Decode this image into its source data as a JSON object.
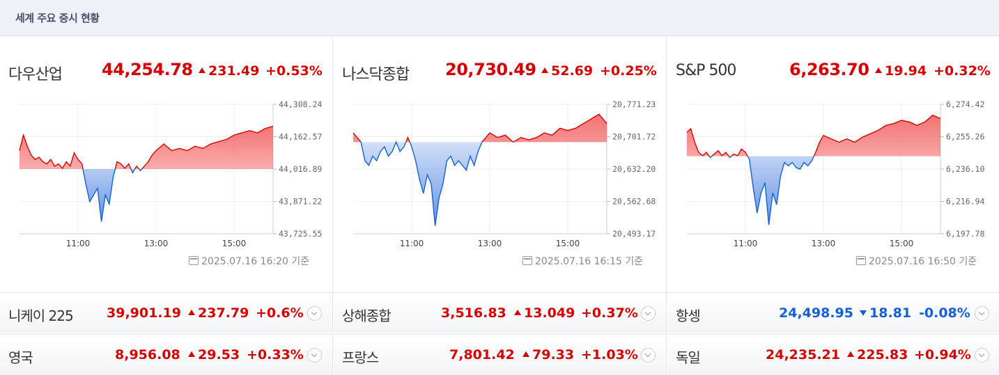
{
  "header": {
    "title": "세계 주요 증시 현황"
  },
  "panels": [
    {
      "name": "다우산업",
      "value": "44,254.78",
      "change": "231.49",
      "percent": "+0.53%",
      "direction": "up",
      "timestamp": "2025.07.16 16:20 기준"
    },
    {
      "name": "나스닥종합",
      "value": "20,730.49",
      "change": "52.69",
      "percent": "+0.25%",
      "direction": "up",
      "timestamp": "2025.07.16 16:15 기준"
    },
    {
      "name": "S&P 500",
      "value": "6,263.70",
      "change": "19.94",
      "percent": "+0.32%",
      "direction": "up",
      "timestamp": "2025.07.16 16:50 기준"
    }
  ],
  "rows": [
    [
      {
        "name": "니케이 225",
        "value": "39,901.19",
        "change": "237.79",
        "percent": "+0.6%",
        "direction": "up"
      },
      {
        "name": "상해종합",
        "value": "3,516.83",
        "change": "13.049",
        "percent": "+0.37%",
        "direction": "up"
      },
      {
        "name": "항셍",
        "value": "24,498.95",
        "change": "18.81",
        "percent": "-0.08%",
        "direction": "down"
      }
    ],
    [
      {
        "name": "영국",
        "value": "8,956.08",
        "change": "29.53",
        "percent": "+0.33%",
        "direction": "up"
      },
      {
        "name": "프랑스",
        "value": "7,801.42",
        "change": "79.33",
        "percent": "+1.03%",
        "direction": "up"
      },
      {
        "name": "독일",
        "value": "24,235.21",
        "change": "225.83",
        "percent": "+0.94%",
        "direction": "up"
      }
    ]
  ],
  "colors": {
    "up": "#d40000",
    "down": "#1560d4",
    "up_fill": "#f25a5a",
    "down_fill": "#4a7fe0"
  },
  "chart_data": [
    {
      "type": "area",
      "title": "다우산업",
      "x_ticks": [
        "11:00",
        "13:00",
        "15:00"
      ],
      "y_ticks": [
        "44,308.24",
        "44,162.57",
        "44,016.89",
        "43,871.22",
        "43,725.55"
      ],
      "ylim": [
        43725.55,
        44308.24
      ],
      "baseline": 44016.89,
      "x_range": [
        9.5,
        16.0
      ],
      "x": [
        9.5,
        9.6,
        9.7,
        9.8,
        9.9,
        10.0,
        10.1,
        10.2,
        10.3,
        10.4,
        10.5,
        10.6,
        10.7,
        10.8,
        10.9,
        11.0,
        11.1,
        11.2,
        11.3,
        11.4,
        11.5,
        11.6,
        11.7,
        11.8,
        11.9,
        12.0,
        12.1,
        12.2,
        12.3,
        12.4,
        12.5,
        12.6,
        12.7,
        12.8,
        12.9,
        13.0,
        13.2,
        13.4,
        13.6,
        13.8,
        14.0,
        14.2,
        14.4,
        14.6,
        14.8,
        15.0,
        15.2,
        15.4,
        15.6,
        15.8,
        16.0
      ],
      "y": [
        44100,
        44170,
        44120,
        44080,
        44060,
        44070,
        44050,
        44040,
        44060,
        44030,
        44040,
        44020,
        44050,
        44030,
        44090,
        44060,
        44040,
        43950,
        43870,
        43900,
        43930,
        43780,
        43900,
        43860,
        43980,
        44050,
        44040,
        44020,
        44040,
        44000,
        44030,
        44010,
        44030,
        44050,
        44080,
        44100,
        44130,
        44100,
        44110,
        44100,
        44120,
        44110,
        44130,
        44140,
        44150,
        44170,
        44180,
        44190,
        44180,
        44200,
        44210
      ],
      "grid": true
    },
    {
      "type": "area",
      "title": "나스닥종합",
      "x_ticks": [
        "11:00",
        "13:00",
        "15:00"
      ],
      "y_ticks": [
        "20,771.23",
        "20,701.72",
        "20,632.20",
        "20,562.68",
        "20,493.17"
      ],
      "ylim": [
        20493.17,
        20771.23
      ],
      "baseline": 20690,
      "x_range": [
        9.5,
        16.0
      ],
      "x": [
        9.5,
        9.6,
        9.7,
        9.8,
        9.9,
        10.0,
        10.1,
        10.2,
        10.3,
        10.4,
        10.5,
        10.6,
        10.7,
        10.8,
        10.9,
        11.0,
        11.1,
        11.2,
        11.3,
        11.4,
        11.5,
        11.6,
        11.7,
        11.8,
        11.9,
        12.0,
        12.1,
        12.2,
        12.3,
        12.4,
        12.5,
        12.6,
        12.7,
        12.8,
        12.9,
        13.0,
        13.2,
        13.4,
        13.6,
        13.8,
        14.0,
        14.2,
        14.4,
        14.6,
        14.8,
        15.0,
        15.2,
        15.4,
        15.6,
        15.8,
        16.0
      ],
      "y": [
        20710,
        20700,
        20690,
        20650,
        20640,
        20660,
        20650,
        20670,
        20680,
        20660,
        20670,
        20690,
        20670,
        20680,
        20700,
        20680,
        20650,
        20610,
        20580,
        20620,
        20600,
        20510,
        20570,
        20600,
        20650,
        20660,
        20640,
        20650,
        20640,
        20630,
        20660,
        20640,
        20670,
        20690,
        20700,
        20710,
        20700,
        20705,
        20690,
        20700,
        20695,
        20700,
        20710,
        20705,
        20720,
        20715,
        20720,
        20730,
        20740,
        20750,
        20730
      ],
      "grid": true
    },
    {
      "type": "area",
      "title": "S&P 500",
      "x_ticks": [
        "11:00",
        "13:00",
        "15:00"
      ],
      "y_ticks": [
        "6,274.42",
        "6,255.26",
        "6,236.10",
        "6,216.94",
        "6,197.78"
      ],
      "ylim": [
        6197.78,
        6274.42
      ],
      "baseline": 6243.7,
      "x_range": [
        9.5,
        16.0
      ],
      "x": [
        9.5,
        9.6,
        9.7,
        9.8,
        9.9,
        10.0,
        10.1,
        10.2,
        10.3,
        10.4,
        10.5,
        10.6,
        10.7,
        10.8,
        10.9,
        11.0,
        11.1,
        11.2,
        11.3,
        11.4,
        11.5,
        11.6,
        11.7,
        11.8,
        11.9,
        12.0,
        12.1,
        12.2,
        12.3,
        12.4,
        12.5,
        12.6,
        12.7,
        12.8,
        12.9,
        13.0,
        13.2,
        13.4,
        13.6,
        13.8,
        14.0,
        14.2,
        14.4,
        14.6,
        14.8,
        15.0,
        15.2,
        15.4,
        15.6,
        15.8,
        16.0
      ],
      "y": [
        6258,
        6260,
        6252,
        6246,
        6244,
        6246,
        6243,
        6245,
        6247,
        6244,
        6246,
        6243,
        6245,
        6244,
        6248,
        6246,
        6242,
        6225,
        6210,
        6222,
        6228,
        6203,
        6222,
        6215,
        6232,
        6240,
        6238,
        6240,
        6237,
        6236,
        6240,
        6238,
        6241,
        6246,
        6252,
        6256,
        6254,
        6252,
        6254,
        6252,
        6255,
        6257,
        6259,
        6262,
        6263,
        6265,
        6264,
        6262,
        6264,
        6268,
        6266
      ],
      "grid": true
    }
  ]
}
